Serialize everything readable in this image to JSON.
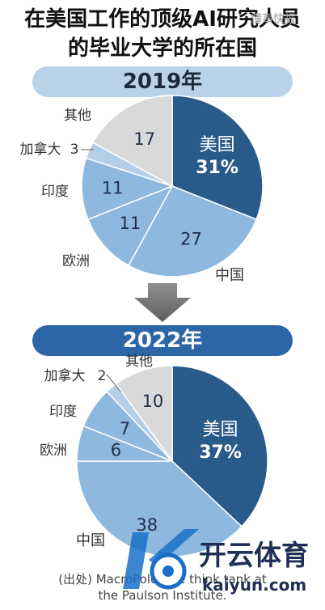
{
  "title_lines": [
    "在美国工作的顶级AI研究人员",
    "的毕业大学的所在国"
  ],
  "watermark": "懂事快报",
  "source_line1": "(出处) MacroPolo, the think tank at",
  "source_line2": "the Paulson Institute.",
  "logo_text": "开云体育",
  "logo_subtext": "kaiyun.com",
  "chart_data": [
    {
      "type": "pie",
      "title": "2019年",
      "categories": [
        "美国",
        "中国",
        "欧洲",
        "印度",
        "加拿大",
        "其他"
      ],
      "values": [
        31,
        27,
        11,
        11,
        3,
        17
      ],
      "value_labels": [
        "31%",
        "27",
        "11",
        "11",
        "3",
        "17"
      ],
      "colors": [
        "#2a5a8a",
        "#8eb8dd",
        "#8eb8dd",
        "#8eb8dd",
        "#b5cfe8",
        "#d9d9d9"
      ],
      "start_angle_deg": 0,
      "direction": "clockwise"
    },
    {
      "type": "pie",
      "title": "2022年",
      "categories": [
        "美国",
        "中国",
        "欧洲",
        "印度",
        "加拿大",
        "其他"
      ],
      "values": [
        37,
        38,
        6,
        7,
        2,
        10
      ],
      "value_labels": [
        "37%",
        "38",
        "6",
        "7",
        "2",
        "10"
      ],
      "colors": [
        "#2a5a8a",
        "#8eb8dd",
        "#8eb8dd",
        "#8eb8dd",
        "#b5cfe8",
        "#d9d9d9"
      ],
      "start_angle_deg": 0,
      "direction": "clockwise"
    }
  ]
}
